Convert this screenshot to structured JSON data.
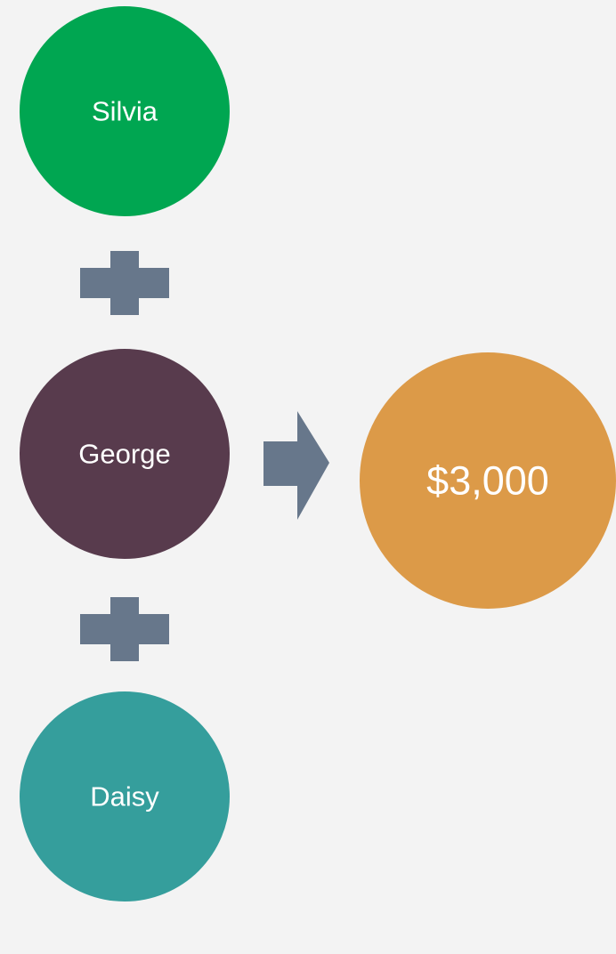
{
  "nodes": [
    {
      "label": "Silvia"
    },
    {
      "label": "George"
    },
    {
      "label": "Daisy"
    }
  ],
  "result": {
    "label": "$3,000"
  }
}
